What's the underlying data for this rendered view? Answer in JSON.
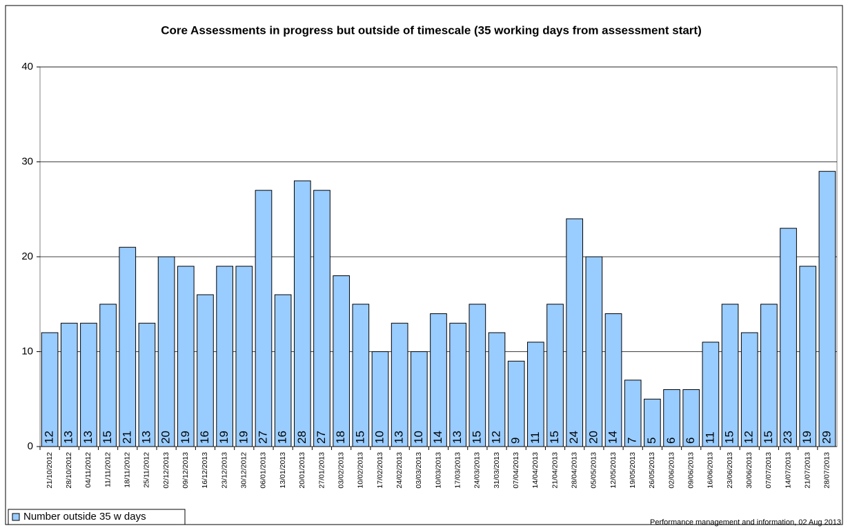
{
  "chart_data": {
    "type": "bar",
    "title": "Core Assessments in progress but outside of timescale (35 working days from assessment start)",
    "categories": [
      "21/10/2012",
      "28/10/2012",
      "04/11/2012",
      "11/11/2012",
      "18/11/2012",
      "25/11/2012",
      "02/12/2013",
      "09/12/2013",
      "16/12/2013",
      "23/12/2013",
      "30/12/2012",
      "06/01/2013",
      "13/01/2013",
      "20/01/2013",
      "27/01/2013",
      "03/02/2013",
      "10/02/2013",
      "17/02/2013",
      "24/02/2013",
      "03/03/2013",
      "10/03/2013",
      "17/03/2013",
      "24/03/2013",
      "31/03/2013",
      "07/04/2013",
      "14/04/2013",
      "21/04/2013",
      "28/04/2013",
      "05/05/2013",
      "12/05/2013",
      "19/05/2013",
      "26/05/2013",
      "02/06/2013",
      "09/06/2013",
      "16/06/2013",
      "23/06/2013",
      "30/06/2013",
      "07/07/2013",
      "14/07/2013",
      "21/07/2013",
      "28/07/2013"
    ],
    "series": [
      {
        "name": "Number outside 35 w days",
        "color": "#99ccff",
        "values": [
          12,
          13,
          13,
          15,
          21,
          13,
          20,
          19,
          16,
          19,
          19,
          27,
          16,
          28,
          27,
          18,
          15,
          10,
          13,
          10,
          14,
          13,
          15,
          12,
          9,
          11,
          15,
          24,
          20,
          14,
          7,
          5,
          6,
          6,
          11,
          15,
          12,
          15,
          23,
          19,
          29
        ]
      }
    ],
    "ylim": [
      0,
      40
    ],
    "yticks": [
      0,
      10,
      20,
      30,
      40
    ],
    "grid": true,
    "legend": "bottom-left",
    "footnote": "Performance management and information, 02 Aug  2013"
  }
}
